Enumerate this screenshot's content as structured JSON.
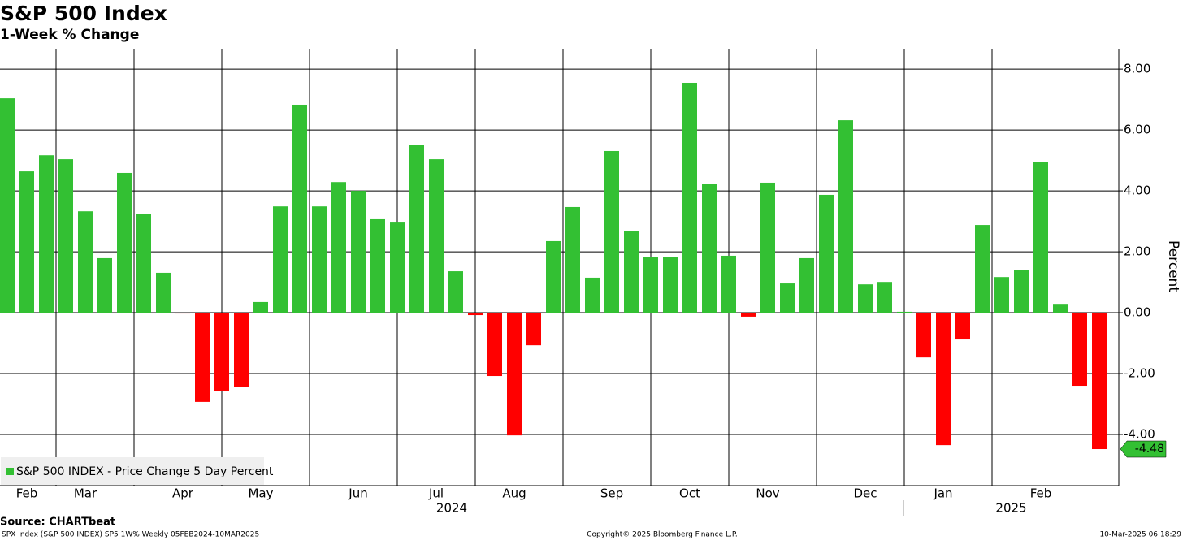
{
  "chart_data": {
    "type": "bar",
    "title": "S&P 500 Index",
    "subtitle": "1-Week % Change",
    "y_label": "Percent",
    "source": "Source: CHARTbeat",
    "footer_left": "SPX Index (S&P 500 INDEX) SP5 1W% Weekly 05FEB2024-10MAR2025",
    "footer_center": "Copyright© 2025 Bloomberg Finance L.P.",
    "footer_right": "10-Mar-2025 06:18:29",
    "categories": [
      null,
      "Feb",
      null,
      null,
      "Mar",
      null,
      null,
      null,
      null,
      "Apr",
      null,
      null,
      null,
      "May",
      null,
      null,
      null,
      null,
      "Jun",
      null,
      null,
      null,
      "Jul",
      null,
      null,
      null,
      "Aug",
      null,
      null,
      null,
      null,
      "Sep",
      null,
      null,
      null,
      "Oct",
      null,
      null,
      null,
      "Nov",
      null,
      null,
      null,
      null,
      "Dec",
      null,
      null,
      null,
      "Jan",
      null,
      null,
      null,
      null,
      "Feb",
      null,
      null,
      null
    ],
    "years": [
      "2024",
      "2025"
    ],
    "series": [
      {
        "name": "S&P 500 INDEX - Price Change 5 Day Percent",
        "color": "#33c033",
        "values": [
          7.04,
          4.64,
          5.17,
          5.04,
          3.33,
          1.79,
          4.59,
          3.25,
          1.31,
          -0.02,
          -2.93,
          -2.56,
          -2.43,
          0.35,
          3.49,
          6.83,
          3.49,
          4.29,
          4.0,
          3.07,
          2.96,
          5.52,
          5.04,
          1.36,
          -0.08,
          -2.08,
          -4.03,
          -1.07,
          2.35,
          3.47,
          1.15,
          5.31,
          2.67,
          1.84,
          1.84,
          7.55,
          4.24,
          1.87,
          -0.13,
          4.27,
          0.96,
          1.79,
          3.87,
          6.32,
          0.93,
          1.01,
          0.03,
          -1.47,
          -4.35,
          -0.88,
          2.88,
          1.17,
          1.41,
          4.96,
          0.29,
          -2.4,
          -4.48
        ],
        "value_labels": [
          null,
          null,
          null,
          null,
          null,
          null,
          null,
          null,
          null,
          null,
          null,
          null,
          null,
          null,
          null,
          null,
          null,
          null,
          null,
          null,
          null,
          null,
          null,
          null,
          null,
          null,
          null,
          null,
          null,
          null,
          null,
          null,
          null,
          null,
          null,
          null,
          null,
          null,
          null,
          null,
          null,
          null,
          null,
          null,
          null,
          null,
          null,
          null,
          null,
          null,
          null,
          null,
          null,
          null,
          null,
          null,
          "-4.48"
        ]
      }
    ],
    "negative_color": "#ff0000",
    "ylim": [
      -5.68,
      8.67
    ],
    "yticks": [
      {
        "value": 8,
        "label": "8.00"
      },
      {
        "value": 6,
        "label": "6.00"
      },
      {
        "value": 4,
        "label": "4.00"
      },
      {
        "value": 2,
        "label": "2.00"
      },
      {
        "value": 0,
        "label": "0.00"
      },
      {
        "value": -2,
        "label": "-2.00"
      },
      {
        "value": -4,
        "label": "-4.00"
      }
    ],
    "grid": true,
    "legend": "lower left"
  }
}
